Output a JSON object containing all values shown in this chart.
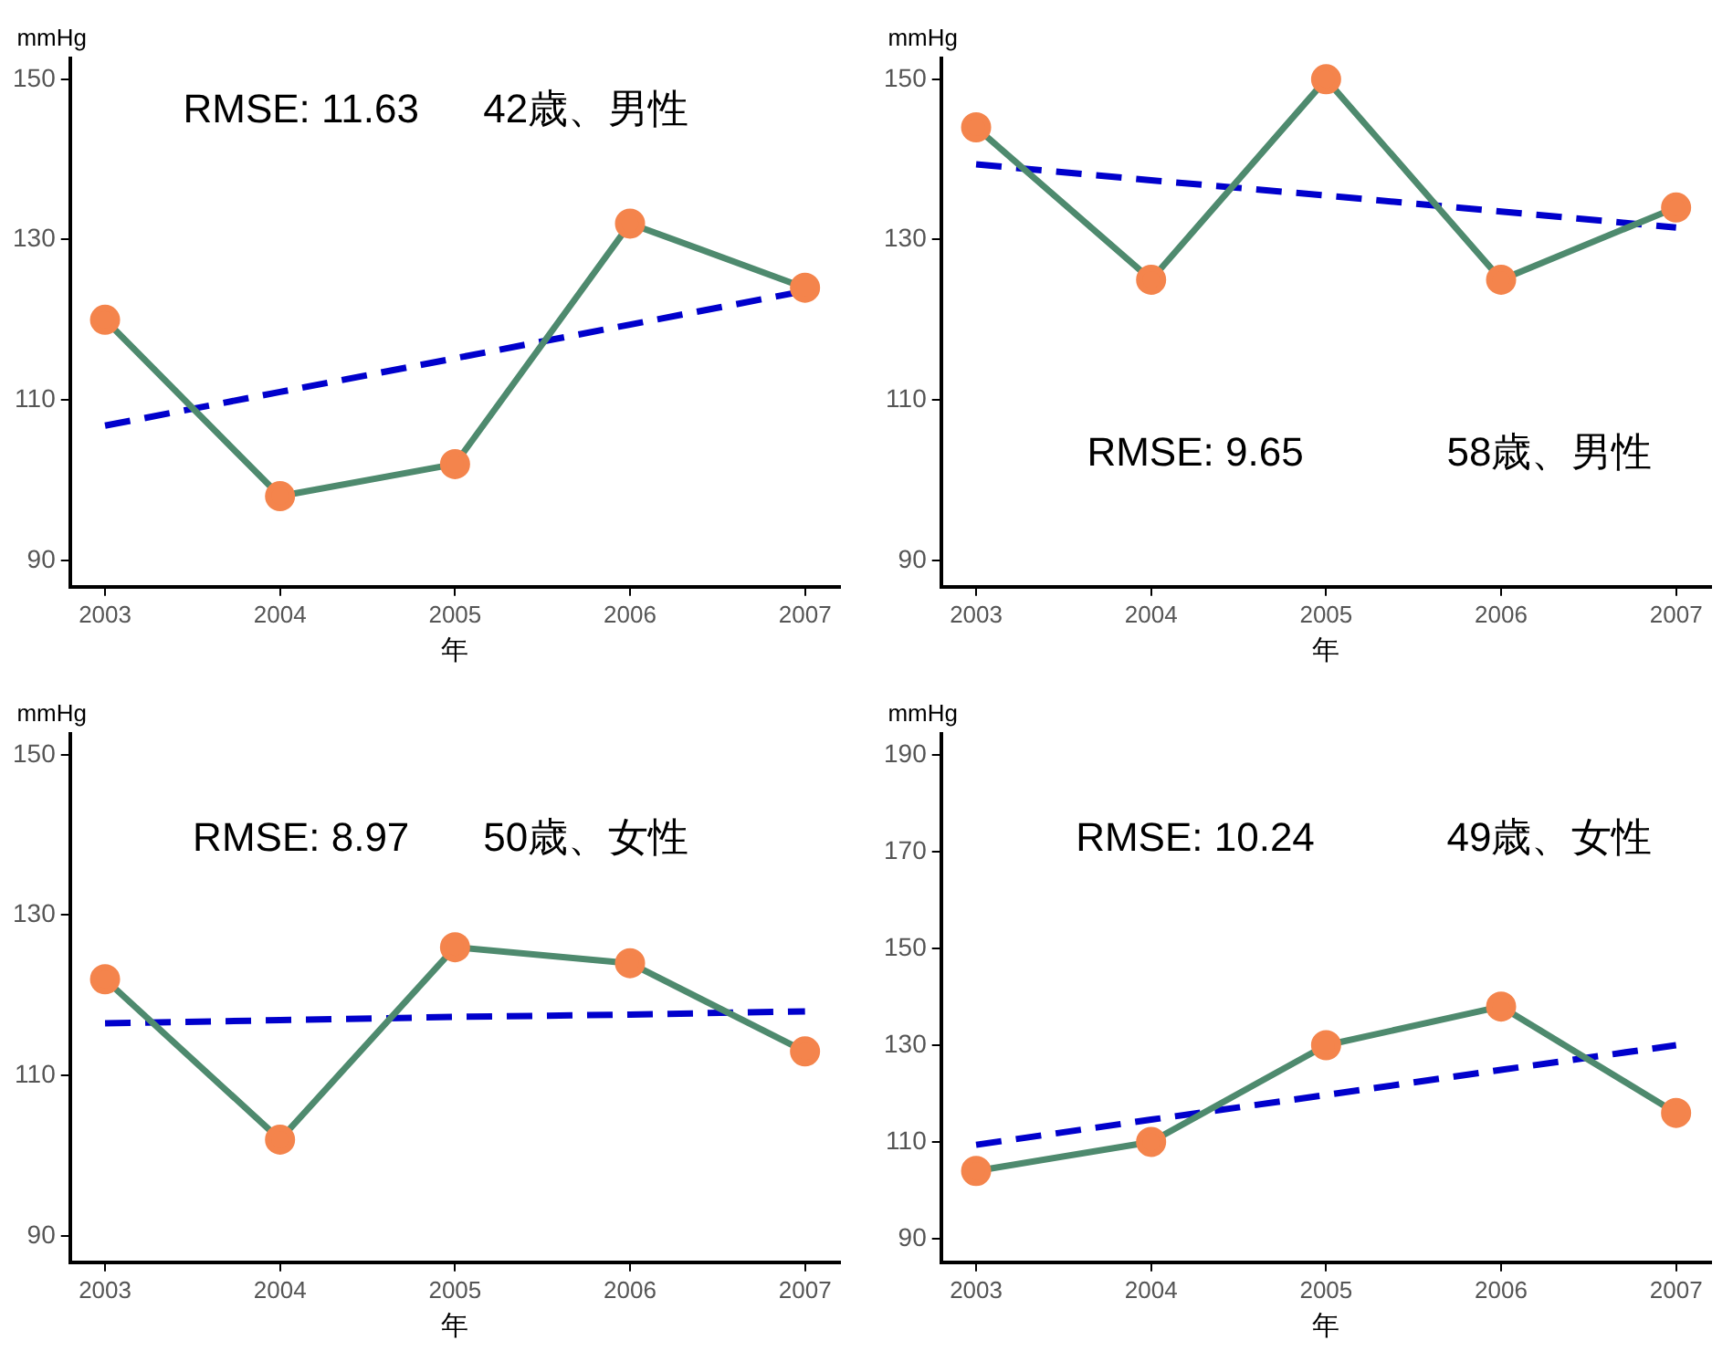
{
  "chart_data": [
    {
      "type": "line",
      "xlabel": "年",
      "ylabel": "mmHg",
      "categories": [
        "2003",
        "2004",
        "2005",
        "2006",
        "2007"
      ],
      "ylim": [
        86.7,
        152.6
      ],
      "yticks": [
        90,
        110,
        130,
        150
      ],
      "grid": false,
      "legend": false,
      "marker": "circle",
      "annotations": [
        "RMSE: 11.63",
        "42歳、男性"
      ],
      "series": [
        {
          "color": "#4e8a6e",
          "colors": [
            "#f4844c",
            "#f4844c",
            "#f4844c",
            "#f4844c",
            "#f4844c"
          ],
          "values": [
            120,
            98,
            102,
            132,
            124
          ]
        },
        {
          "type": "line",
          "color": "#0000cc",
          "line_style": "dashed",
          "marker": "none",
          "values": [
            106.8,
            111.0,
            115.2,
            119.4,
            123.6
          ]
        }
      ]
    },
    {
      "type": "line",
      "xlabel": "年",
      "ylabel": "mmHg",
      "categories": [
        "2003",
        "2004",
        "2005",
        "2006",
        "2007"
      ],
      "ylim": [
        86.7,
        152.6
      ],
      "yticks": [
        90,
        110,
        130,
        150
      ],
      "grid": false,
      "legend": false,
      "marker": "circle",
      "annotations": [
        "RMSE: 9.65",
        "58歳、男性"
      ],
      "series": [
        {
          "color": "#4e8a6e",
          "colors": [
            "#f4844c",
            "#f4844c",
            "#f4844c",
            "#f4844c",
            "#f4844c"
          ],
          "values": [
            144,
            125,
            150,
            125,
            134
          ]
        },
        {
          "type": "line",
          "color": "#0000cc",
          "line_style": "dashed",
          "marker": "none",
          "values": [
            139.4,
            137.4,
            135.5,
            133.5,
            131.5
          ]
        }
      ]
    },
    {
      "type": "line",
      "xlabel": "年",
      "ylabel": "mmHg",
      "categories": [
        "2003",
        "2004",
        "2005",
        "2006",
        "2007"
      ],
      "ylim": [
        86.7,
        152.6
      ],
      "yticks": [
        90,
        110,
        130,
        150
      ],
      "grid": false,
      "legend": false,
      "marker": "circle",
      "annotations": [
        "RMSE: 8.97",
        "50歳、女性"
      ],
      "series": [
        {
          "color": "#4e8a6e",
          "colors": [
            "#f4844c",
            "#f4844c",
            "#f4844c",
            "#f4844c",
            "#f4844c"
          ],
          "values": [
            122,
            102,
            126,
            124,
            113
          ]
        },
        {
          "type": "line",
          "color": "#0000cc",
          "line_style": "dashed",
          "marker": "none",
          "values": [
            116.5,
            116.9,
            117.3,
            117.6,
            118.0
          ]
        }
      ]
    },
    {
      "type": "line",
      "xlabel": "年",
      "ylabel": "mmHg",
      "categories": [
        "2003",
        "2004",
        "2005",
        "2006",
        "2007"
      ],
      "ylim": [
        85.1,
        194.4
      ],
      "yticks": [
        90,
        110,
        130,
        150,
        170,
        190
      ],
      "grid": false,
      "legend": false,
      "marker": "circle",
      "annotations": [
        "RMSE: 10.24",
        "49歳、女性"
      ],
      "series": [
        {
          "color": "#4e8a6e",
          "colors": [
            "#f4844c",
            "#f4844c",
            "#f4844c",
            "#f4844c",
            "#f4844c"
          ],
          "values": [
            104,
            110,
            130,
            138,
            116
          ]
        },
        {
          "type": "line",
          "color": "#0000cc",
          "line_style": "dashed",
          "marker": "none",
          "values": [
            109.4,
            114.6,
            119.7,
            124.9,
            130.0
          ]
        }
      ]
    }
  ]
}
